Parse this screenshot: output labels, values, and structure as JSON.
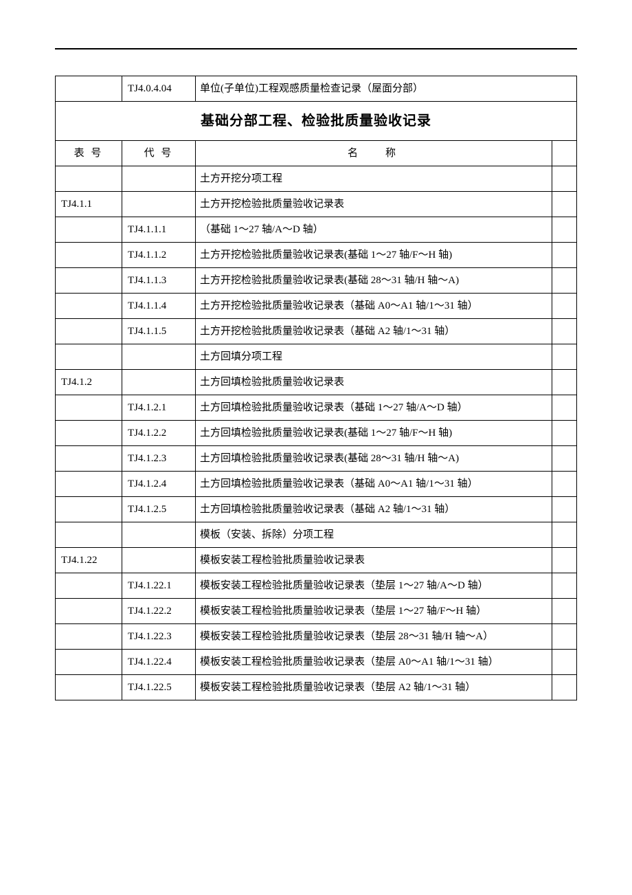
{
  "colors": {
    "border": "#000000",
    "background": "#ffffff",
    "text": "#000000"
  },
  "fonts": {
    "body_family": "SimSun",
    "body_size_pt": 11,
    "title_size_pt": 15,
    "title_weight": "bold"
  },
  "top_row": {
    "code": "TJ4.0.4.04",
    "name": "单位(子单位)工程观感质量检查记录（屋面分部）"
  },
  "section_title": "基础分部工程、检验批质量验收记录",
  "headers": {
    "col1": "表 号",
    "col2": "代 号",
    "col3": "名称"
  },
  "rows": [
    {
      "biao": "",
      "dai": "",
      "name": "土方开挖分项工程"
    },
    {
      "biao": "TJ4.1.1",
      "dai": "",
      "name": "土方开挖检验批质量验收记录表"
    },
    {
      "biao": "",
      "dai": "TJ4.1.1.1",
      "name": "（基础 1～27 轴/A～D 轴）"
    },
    {
      "biao": "",
      "dai": "TJ4.1.1.2",
      "name": "土方开挖检验批质量验收记录表(基础 1～27 轴/F～H 轴)"
    },
    {
      "biao": "",
      "dai": "TJ4.1.1.3",
      "name": "土方开挖检验批质量验收记录表(基础 28～31 轴/H 轴～A)"
    },
    {
      "biao": "",
      "dai": "TJ4.1.1.4",
      "name": "土方开挖检验批质量验收记录表（基础 A0～A1 轴/1～31 轴）"
    },
    {
      "biao": "",
      "dai": "TJ4.1.1.5",
      "name": "土方开挖检验批质量验收记录表（基础 A2 轴/1～31 轴）"
    },
    {
      "biao": "",
      "dai": "",
      "name": "土方回填分项工程"
    },
    {
      "biao": "TJ4.1.2",
      "dai": "",
      "name": "土方回填检验批质量验收记录表"
    },
    {
      "biao": "",
      "dai": "TJ4.1.2.1",
      "name": "土方回填检验批质量验收记录表（基础 1～27 轴/A～D 轴）"
    },
    {
      "biao": "",
      "dai": "TJ4.1.2.2",
      "name": "土方回填检验批质量验收记录表(基础 1～27 轴/F～H 轴)"
    },
    {
      "biao": "",
      "dai": "TJ4.1.2.3",
      "name": "土方回填检验批质量验收记录表(基础 28～31 轴/H 轴～A)"
    },
    {
      "biao": "",
      "dai": "TJ4.1.2.4",
      "name": "土方回填检验批质量验收记录表（基础 A0～A1 轴/1～31 轴）"
    },
    {
      "biao": "",
      "dai": "TJ4.1.2.5",
      "name": "土方回填检验批质量验收记录表（基础 A2 轴/1～31 轴）"
    },
    {
      "biao": "",
      "dai": "",
      "name": "模板（安装、拆除）分项工程"
    },
    {
      "biao": "TJ4.1.22",
      "dai": "",
      "name": "模板安装工程检验批质量验收记录表"
    },
    {
      "biao": "",
      "dai": "TJ4.1.22.1",
      "name": "模板安装工程检验批质量验收记录表（垫层 1～27 轴/A～D 轴）"
    },
    {
      "biao": "",
      "dai": "TJ4.1.22.2",
      "name": "模板安装工程检验批质量验收记录表（垫层 1～27 轴/F～H 轴）"
    },
    {
      "biao": "",
      "dai": "TJ4.1.22.3",
      "name": "模板安装工程检验批质量验收记录表（垫层 28～31 轴/H 轴～A）"
    },
    {
      "biao": "",
      "dai": "TJ4.1.22.4",
      "name": "模板安装工程检验批质量验收记录表（垫层 A0～A1 轴/1～31 轴）"
    },
    {
      "biao": "",
      "dai": "TJ4.1.22.5",
      "name": "模板安装工程检验批质量验收记录表（垫层 A2 轴/1～31 轴）"
    }
  ]
}
